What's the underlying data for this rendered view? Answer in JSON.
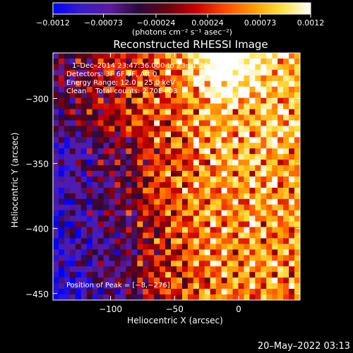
{
  "chart_data": {
    "type": "heatmap",
    "title": "Reconstructed RHESSI Image",
    "xlabel": "Heliocentric X (arcsec)",
    "ylabel": "Heliocentric Y (arcsec)",
    "xlim": [
      -145,
      48
    ],
    "ylim": [
      -455,
      -265
    ],
    "x_ticks": [
      -100,
      -50,
      0
    ],
    "x_tick_labels": [
      "−100",
      "−50",
      "0"
    ],
    "y_ticks": [
      -300,
      -350,
      -400,
      -450
    ],
    "y_tick_labels": [
      "−300",
      "−350",
      "−400",
      "−450"
    ],
    "colorbar": {
      "range": [
        -0.0012,
        0.0012
      ],
      "ticks": [
        -0.0012,
        -0.00073,
        -0.00024,
        0.00024,
        0.00073,
        0.0012
      ],
      "tick_labels": [
        "−0.0012",
        "−0.00073",
        "−0.00024",
        "0.00024",
        "0.00073",
        "0.0012"
      ],
      "units_label": "(photons cm⁻² s⁻¹ asec⁻²)",
      "colormap": [
        "#0000ff",
        "#3c1cc8",
        "#5a1aa0",
        "#2a0a3a",
        "#6a0010",
        "#c80000",
        "#ff4a00",
        "#ff9a00",
        "#ffe040",
        "#ffffff"
      ]
    },
    "peak": {
      "x": -8,
      "y": -276
    },
    "info_lines": [
      "1–Dec–2014 23:47:36.000 to 23:51:28.000",
      "Detectors: 3F 6F 9F, Att 0",
      "Energy Range: 12.0 – 25.0 keV",
      "Clean    Total counts: 2.70E+03"
    ],
    "peak_label": "Position of Peak = [−8,−276]",
    "grid": false
  },
  "footer": {
    "timestamp": "20–May–2022 03:13"
  }
}
